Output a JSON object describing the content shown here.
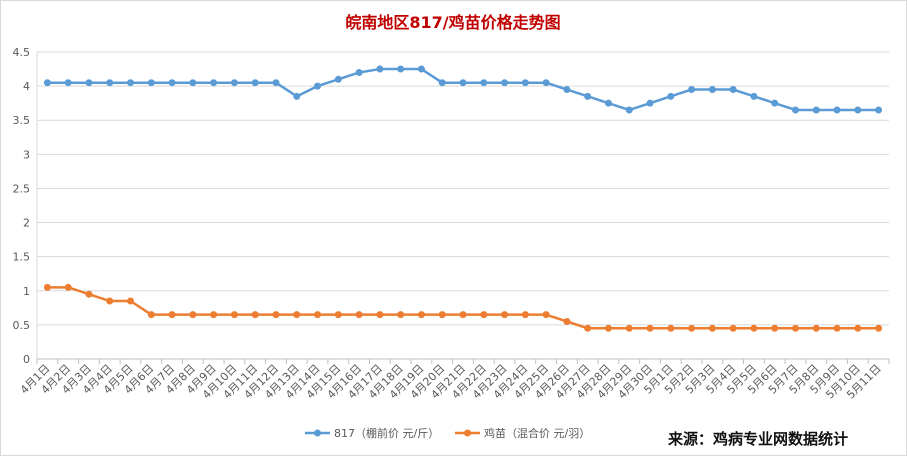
{
  "chart_data": {
    "type": "line",
    "title": "皖南地区817/鸡苗价格走势图",
    "title_color": "#c00000",
    "categories": [
      "4月1日",
      "4月2日",
      "4月3日",
      "4月4日",
      "4月5日",
      "4月6日",
      "4月7日",
      "4月8日",
      "4月9日",
      "4月10日",
      "4月11日",
      "4月12日",
      "4月13日",
      "4月14日",
      "4月15日",
      "4月16日",
      "4月17日",
      "4月18日",
      "4月19日",
      "4月20日",
      "4月21日",
      "4月22日",
      "4月23日",
      "4月24日",
      "4月25日",
      "4月26日",
      "4月27日",
      "4月28日",
      "4月29日",
      "4月30日",
      "5月1日",
      "5月2日",
      "5月3日",
      "5月4日",
      "5月5日",
      "5月6日",
      "5月7日",
      "5月8日",
      "5月9日",
      "5月10日",
      "5月11日"
    ],
    "series": [
      {
        "name": "817（棚前价 元/斤）",
        "color": "#5b9bd5",
        "values": [
          4.05,
          4.05,
          4.05,
          4.05,
          4.05,
          4.05,
          4.05,
          4.05,
          4.05,
          4.05,
          4.05,
          4.05,
          3.85,
          4.0,
          4.1,
          4.2,
          4.25,
          4.25,
          4.25,
          4.05,
          4.05,
          4.05,
          4.05,
          4.05,
          4.05,
          3.95,
          3.85,
          3.75,
          3.65,
          3.75,
          3.85,
          3.95,
          3.95,
          3.95,
          3.85,
          3.75,
          3.65,
          3.65,
          3.65,
          3.65,
          3.65
        ]
      },
      {
        "name": "鸡苗（混合价 元/羽）",
        "color": "#ed7d31",
        "values": [
          1.05,
          1.05,
          0.95,
          0.85,
          0.85,
          0.65,
          0.65,
          0.65,
          0.65,
          0.65,
          0.65,
          0.65,
          0.65,
          0.65,
          0.65,
          0.65,
          0.65,
          0.65,
          0.65,
          0.65,
          0.65,
          0.65,
          0.65,
          0.65,
          0.65,
          0.55,
          0.45,
          0.45,
          0.45,
          0.45,
          0.45,
          0.45,
          0.45,
          0.45,
          0.45,
          0.45,
          0.45,
          0.45,
          0.45,
          0.45,
          0.45
        ]
      }
    ],
    "ylim": [
      0,
      4.5
    ],
    "yticks": [
      0,
      0.5,
      1,
      1.5,
      2,
      2.5,
      3,
      3.5,
      4,
      4.5
    ],
    "grid": true,
    "legend": "bottom",
    "source": "来源：鸡病专业网数据统计"
  }
}
